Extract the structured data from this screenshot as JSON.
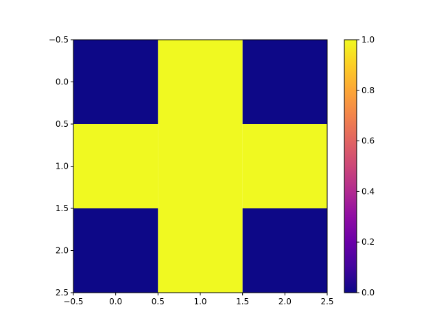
{
  "chart_data": {
    "type": "heatmap",
    "colormap": "plasma",
    "matrix": [
      [
        0,
        1,
        0
      ],
      [
        1,
        1,
        1
      ],
      [
        0,
        1,
        0
      ]
    ],
    "xlim": [
      -0.5,
      2.5
    ],
    "ylim": [
      2.5,
      -0.5
    ],
    "x_ticks": [
      -0.5,
      0.0,
      0.5,
      1.0,
      1.5,
      2.0,
      2.5
    ],
    "x_tick_labels": [
      "−0.5",
      "0.0",
      "0.5",
      "1.0",
      "1.5",
      "2.0",
      "2.5"
    ],
    "y_ticks": [
      -0.5,
      0.0,
      0.5,
      1.0,
      1.5,
      2.0,
      2.5
    ],
    "y_tick_labels": [
      "−0.5",
      "0.0",
      "0.5",
      "1.0",
      "1.5",
      "2.0",
      "2.5"
    ],
    "colorbar": {
      "range": [
        0.0,
        1.0
      ],
      "ticks": [
        0.0,
        0.2,
        0.4,
        0.6,
        0.8,
        1.0
      ],
      "tick_labels": [
        "0.0",
        "0.2",
        "0.4",
        "0.6",
        "0.8",
        "1.0"
      ]
    },
    "colors": {
      "low": "#0d0887",
      "high": "#f0f921"
    },
    "title": "",
    "xlabel": "",
    "ylabel": "",
    "grid": false
  }
}
